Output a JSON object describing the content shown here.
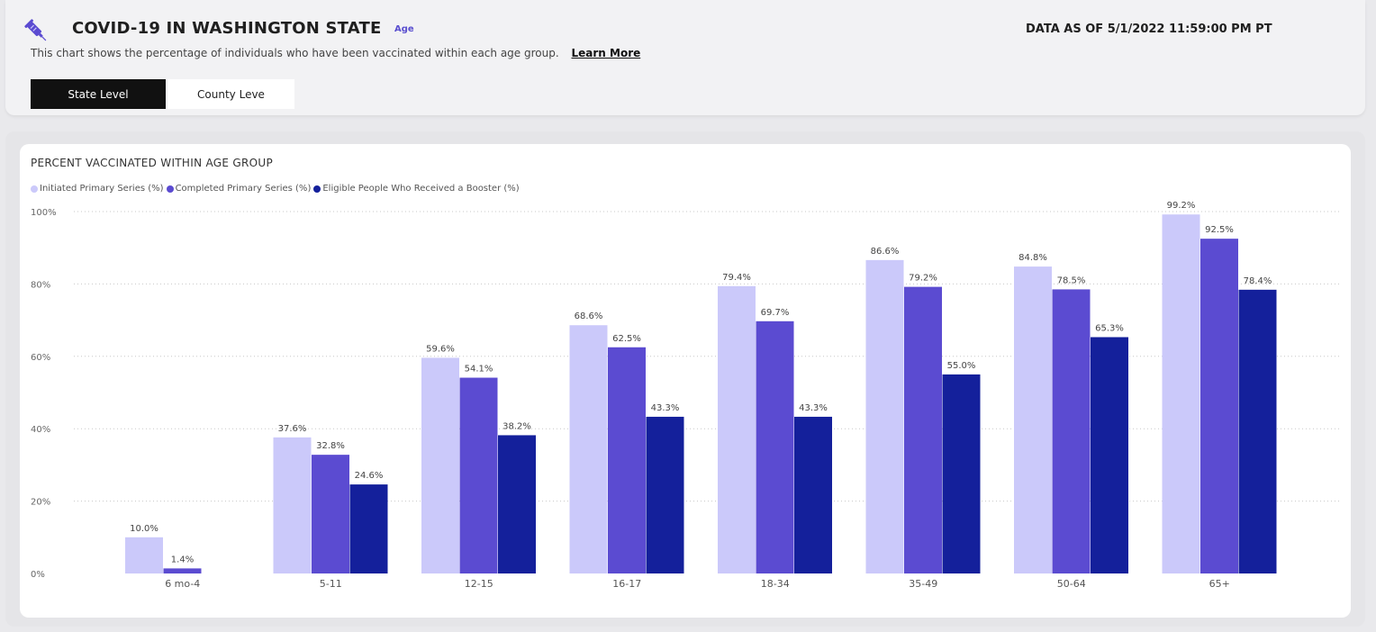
{
  "header": {
    "title": "COVID-19 IN WASHINGTON STATE",
    "section_link": "Age",
    "data_as_of": "DATA AS OF 5/1/2022 11:59:00 PM PT",
    "subtitle": "This chart shows the percentage of individuals who have been vaccinated within each age group.",
    "learn_more": "Learn More",
    "syringe_icon": "syringe-icon"
  },
  "toggles": {
    "state_level": "State Level",
    "county_level": "County Leve"
  },
  "colors": {
    "initiated": "#cbc9fa",
    "completed": "#5b4bd1",
    "booster": "#14209b",
    "active_toggle_bg": "#111111"
  },
  "chart_data": {
    "type": "bar",
    "title": "PERCENT VACCINATED WITHIN AGE GROUP",
    "categories": [
      "6 mo-4",
      "5-11",
      "12-15",
      "16-17",
      "18-34",
      "35-49",
      "50-64",
      "65+"
    ],
    "series": [
      {
        "name": "Initiated Primary Series (%)",
        "values": [
          10.0,
          37.6,
          59.6,
          68.6,
          79.4,
          86.6,
          84.8,
          99.2
        ],
        "labels": [
          "10.0%",
          "37.6%",
          "59.6%",
          "68.6%",
          "79.4%",
          "86.6%",
          "84.8%",
          "99.2%"
        ]
      },
      {
        "name": "Completed Primary Series (%)",
        "values": [
          1.4,
          32.8,
          54.1,
          62.5,
          69.7,
          79.2,
          78.5,
          92.5
        ],
        "labels": [
          "1.4%",
          "32.8%",
          "54.1%",
          "62.5%",
          "69.7%",
          "79.2%",
          "78.5%",
          "92.5%"
        ]
      },
      {
        "name": "Eligible People Who Received a Booster (%)",
        "values": [
          null,
          24.6,
          38.2,
          43.3,
          43.3,
          55.0,
          65.3,
          78.4
        ],
        "labels": [
          null,
          "24.6%",
          "38.2%",
          "43.3%",
          "43.3%",
          "55.0%",
          "65.3%",
          "78.4%"
        ]
      }
    ],
    "ylim": [
      0,
      100
    ],
    "yticks": [
      0,
      20,
      40,
      60,
      80,
      100
    ],
    "ytick_labels": [
      "0%",
      "20%",
      "40%",
      "60%",
      "80%",
      "100%"
    ],
    "grid": true,
    "legend_position": "top-left"
  }
}
